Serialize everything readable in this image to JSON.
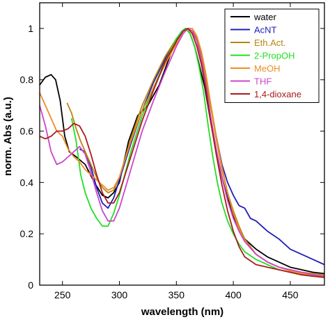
{
  "chart_data": {
    "type": "line",
    "title": "",
    "xlabel": "wavelength (nm)",
    "ylabel": "norm. Abs (a.u.)",
    "xlim": [
      230,
      480
    ],
    "ylim": [
      0,
      1.1
    ],
    "xticks": [
      250,
      300,
      350,
      400,
      450
    ],
    "yticks": [
      0,
      0.2,
      0.4,
      0.6,
      0.8,
      1
    ],
    "xtick_labels": [
      "250",
      "300",
      "350",
      "400",
      "450"
    ],
    "ytick_labels": [
      "0",
      "0.2",
      "0.4",
      "0.6",
      "0.8",
      "1"
    ],
    "grid": false,
    "legend_position": "top-right",
    "series": [
      {
        "name": "water",
        "color": "#000000",
        "x": [
          230,
          235,
          240,
          244,
          248,
          252,
          256,
          262,
          270,
          278,
          285,
          290,
          295,
          300,
          308,
          316,
          325,
          335,
          345,
          352,
          358,
          362,
          366,
          370,
          375,
          380,
          385,
          390,
          395,
          400,
          405,
          410,
          420,
          430,
          440,
          450,
          460,
          470,
          480
        ],
        "y": [
          0.78,
          0.81,
          0.82,
          0.8,
          0.72,
          0.58,
          0.52,
          0.5,
          0.47,
          0.4,
          0.35,
          0.34,
          0.36,
          0.4,
          0.56,
          0.66,
          0.7,
          0.78,
          0.9,
          0.97,
          1.0,
          0.98,
          0.93,
          0.86,
          0.77,
          0.64,
          0.52,
          0.42,
          0.34,
          0.27,
          0.22,
          0.18,
          0.14,
          0.11,
          0.09,
          0.07,
          0.06,
          0.05,
          0.045
        ]
      },
      {
        "name": "AcNT",
        "color": "#1f1fb5",
        "x": [
          265,
          270,
          275,
          280,
          285,
          290,
          295,
          300,
          310,
          320,
          330,
          340,
          350,
          355,
          360,
          364,
          368,
          372,
          376,
          380,
          385,
          390,
          395,
          400,
          405,
          410,
          415,
          420,
          430,
          440,
          450,
          460,
          470,
          480
        ],
        "y": [
          0.53,
          0.52,
          0.46,
          0.38,
          0.32,
          0.3,
          0.34,
          0.41,
          0.55,
          0.68,
          0.79,
          0.88,
          0.96,
          0.99,
          1.0,
          0.99,
          0.96,
          0.9,
          0.81,
          0.7,
          0.58,
          0.47,
          0.4,
          0.35,
          0.31,
          0.3,
          0.26,
          0.25,
          0.21,
          0.18,
          0.14,
          0.12,
          0.1,
          0.08
        ]
      },
      {
        "name": "Eth.Act.",
        "color": "#b8860b",
        "x": [
          254,
          258,
          262,
          266,
          270,
          275,
          280,
          285,
          290,
          295,
          300,
          310,
          320,
          330,
          340,
          350,
          356,
          360,
          364,
          368,
          372,
          376,
          380,
          385,
          390,
          395,
          400,
          405,
          410,
          420,
          430,
          440,
          450,
          460,
          470,
          480
        ],
        "y": [
          0.71,
          0.67,
          0.61,
          0.56,
          0.52,
          0.47,
          0.42,
          0.38,
          0.36,
          0.37,
          0.42,
          0.57,
          0.7,
          0.8,
          0.89,
          0.96,
          0.99,
          1.0,
          0.99,
          0.96,
          0.9,
          0.81,
          0.7,
          0.57,
          0.45,
          0.36,
          0.29,
          0.23,
          0.18,
          0.12,
          0.09,
          0.07,
          0.06,
          0.05,
          0.045,
          0.04
        ]
      },
      {
        "name": "2-PropOH",
        "color": "#22dd22",
        "x": [
          258,
          262,
          266,
          270,
          275,
          280,
          285,
          290,
          295,
          300,
          310,
          320,
          330,
          340,
          350,
          355,
          358,
          362,
          366,
          370,
          374,
          378,
          382,
          386,
          390,
          395,
          400,
          405,
          410,
          420,
          430,
          440,
          450,
          460,
          470,
          480
        ],
        "y": [
          0.65,
          0.56,
          0.43,
          0.36,
          0.3,
          0.26,
          0.23,
          0.23,
          0.28,
          0.35,
          0.52,
          0.66,
          0.77,
          0.87,
          0.96,
          0.99,
          1.0,
          0.98,
          0.93,
          0.85,
          0.75,
          0.62,
          0.5,
          0.4,
          0.32,
          0.25,
          0.2,
          0.16,
          0.13,
          0.1,
          0.08,
          0.06,
          0.05,
          0.04,
          0.035,
          0.03
        ]
      },
      {
        "name": "MeOH",
        "color": "#ee8c24",
        "x": [
          230,
          235,
          240,
          245,
          250,
          255,
          260,
          265,
          270,
          275,
          280,
          285,
          290,
          295,
          300,
          310,
          320,
          330,
          340,
          350,
          356,
          360,
          364,
          368,
          372,
          376,
          380,
          385,
          390,
          395,
          400,
          405,
          410,
          420,
          430,
          440,
          450,
          460,
          470,
          480
        ],
        "y": [
          0.75,
          0.7,
          0.65,
          0.6,
          0.58,
          0.53,
          0.5,
          0.48,
          0.45,
          0.43,
          0.41,
          0.39,
          0.37,
          0.38,
          0.42,
          0.56,
          0.68,
          0.77,
          0.86,
          0.94,
          0.98,
          1.0,
          1.0,
          0.97,
          0.91,
          0.82,
          0.71,
          0.58,
          0.46,
          0.36,
          0.28,
          0.22,
          0.17,
          0.12,
          0.09,
          0.07,
          0.055,
          0.045,
          0.035,
          0.03
        ]
      },
      {
        "name": "THF",
        "color": "#cc44cc",
        "x": [
          230,
          235,
          240,
          245,
          250,
          255,
          260,
          265,
          270,
          275,
          280,
          285,
          290,
          295,
          300,
          310,
          320,
          330,
          340,
          350,
          356,
          360,
          364,
          368,
          372,
          376,
          380,
          385,
          390,
          395,
          400,
          405,
          410,
          420,
          430,
          440,
          450,
          460,
          470,
          480
        ],
        "y": [
          0.7,
          0.62,
          0.52,
          0.47,
          0.48,
          0.5,
          0.52,
          0.54,
          0.51,
          0.44,
          0.36,
          0.29,
          0.25,
          0.25,
          0.3,
          0.45,
          0.6,
          0.72,
          0.83,
          0.93,
          0.98,
          1.0,
          0.99,
          0.95,
          0.88,
          0.78,
          0.66,
          0.53,
          0.42,
          0.33,
          0.26,
          0.21,
          0.17,
          0.12,
          0.09,
          0.07,
          0.06,
          0.05,
          0.04,
          0.035
        ]
      },
      {
        "name": "1,4-dioxane",
        "color": "#aa1a1a",
        "x": [
          230,
          235,
          240,
          245,
          250,
          255,
          260,
          265,
          270,
          275,
          280,
          285,
          290,
          295,
          300,
          310,
          320,
          330,
          340,
          350,
          356,
          360,
          364,
          368,
          372,
          376,
          380,
          385,
          390,
          395,
          400,
          405,
          410,
          420,
          430,
          440,
          450,
          460,
          470,
          480
        ],
        "y": [
          0.58,
          0.57,
          0.58,
          0.6,
          0.6,
          0.61,
          0.63,
          0.62,
          0.58,
          0.51,
          0.43,
          0.36,
          0.32,
          0.32,
          0.36,
          0.5,
          0.64,
          0.76,
          0.87,
          0.95,
          0.99,
          1.0,
          0.98,
          0.93,
          0.86,
          0.76,
          0.64,
          0.51,
          0.39,
          0.29,
          0.21,
          0.15,
          0.11,
          0.08,
          0.07,
          0.06,
          0.05,
          0.04,
          0.035,
          0.03
        ]
      }
    ]
  }
}
